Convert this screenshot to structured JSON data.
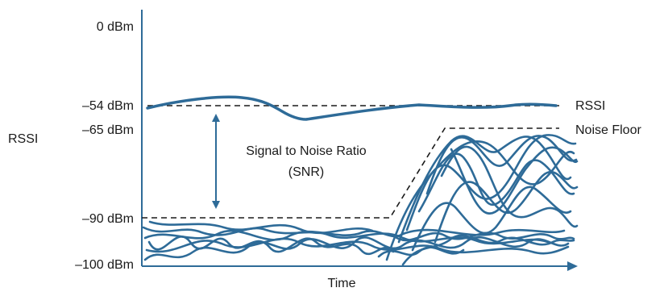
{
  "axis": {
    "y_label": "RSSI",
    "x_label": "Time",
    "ticks": [
      "0 dBm",
      "–54 dBm",
      "–65 dBm",
      "–90 dBm",
      "–100 dBm"
    ]
  },
  "lines": {
    "rssi": "RSSI",
    "noise_floor": "Noise Floor"
  },
  "snr": {
    "line1": "Signal to Noise Ratio",
    "line2": "(SNR)"
  },
  "colors": {
    "accent": "#2e6b98",
    "text": "#1a1a1a",
    "background": "#ffffff"
  }
}
